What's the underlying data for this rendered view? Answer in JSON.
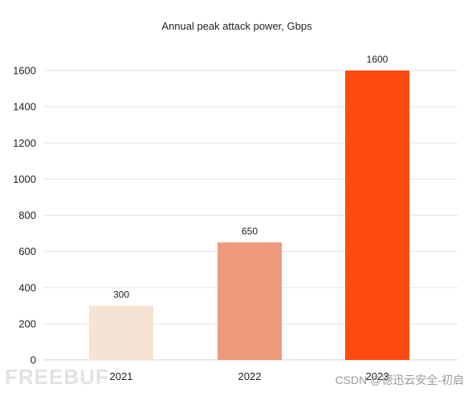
{
  "chart_data": {
    "type": "bar",
    "title": "Annual peak attack power, Gbps",
    "categories": [
      "2021",
      "2022",
      "2023"
    ],
    "values": [
      300,
      650,
      1600
    ],
    "data_labels": [
      "300",
      "650",
      "1600"
    ],
    "bar_colors": [
      "#f5e3d3",
      "#ee9b7d",
      "#ff4a0f"
    ],
    "ylim": [
      0,
      1600
    ],
    "yticks": [
      0,
      200,
      400,
      600,
      800,
      1000,
      1200,
      1400,
      1600
    ],
    "grid": true,
    "xlabel": "",
    "ylabel": ""
  },
  "watermarks": {
    "left": "FREEBUF",
    "right": "CSDN @德迅云安全-初启"
  }
}
